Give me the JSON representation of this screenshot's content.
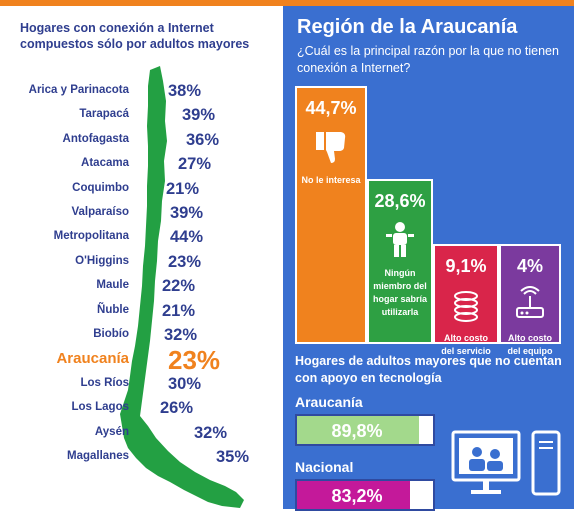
{
  "left": {
    "title": "Hogares con conexión a Internet compuestos sólo por adultos mayores",
    "regions": [
      {
        "name": "Arica y Parinacota",
        "pct": "38%",
        "value": 38
      },
      {
        "name": "Tarapacá",
        "pct": "39%",
        "value": 39
      },
      {
        "name": "Antofagasta",
        "pct": "36%",
        "value": 36
      },
      {
        "name": "Atacama",
        "pct": "27%",
        "value": 27
      },
      {
        "name": "Coquimbo",
        "pct": "21%",
        "value": 21
      },
      {
        "name": "Valparaíso",
        "pct": "39%",
        "value": 39
      },
      {
        "name": "Metropolitana",
        "pct": "44%",
        "value": 44
      },
      {
        "name": "O'Higgins",
        "pct": "23%",
        "value": 23
      },
      {
        "name": "Maule",
        "pct": "22%",
        "value": 22
      },
      {
        "name": "Ñuble",
        "pct": "21%",
        "value": 21
      },
      {
        "name": "Biobío",
        "pct": "32%",
        "value": 32
      },
      {
        "name": "Araucanía",
        "pct": "23%",
        "value": 23,
        "highlight": true
      },
      {
        "name": "Los Ríos",
        "pct": "30%",
        "value": 30
      },
      {
        "name": "Los Lagos",
        "pct": "26%",
        "value": 26
      },
      {
        "name": "Aysén",
        "pct": "32%",
        "value": 32
      },
      {
        "name": "Magallanes",
        "pct": "35%",
        "value": 35
      }
    ]
  },
  "right": {
    "title": "Región de la Araucanía",
    "question": "¿Cuál es la principal razón por la que no tienen conexión a Internet?",
    "support_title": "Hogares de adultos mayores que no cuentan con apoyo en tecnología"
  },
  "chart_data": [
    {
      "type": "bar",
      "title": "Hogares con conexión a Internet compuestos sólo por adultos mayores",
      "categories": [
        "Arica y Parinacota",
        "Tarapacá",
        "Antofagasta",
        "Atacama",
        "Coquimbo",
        "Valparaíso",
        "Metropolitana",
        "O'Higgins",
        "Maule",
        "Ñuble",
        "Biobío",
        "Araucanía",
        "Los Ríos",
        "Los Lagos",
        "Aysén",
        "Magallanes"
      ],
      "values": [
        38,
        39,
        36,
        27,
        21,
        39,
        44,
        23,
        22,
        21,
        32,
        23,
        30,
        26,
        32,
        35
      ]
    },
    {
      "type": "bar",
      "title": "¿Cuál es la principal razón por la que no tienen conexión a Internet?",
      "bars": [
        {
          "label": "No le interesa",
          "value": 44.7,
          "text": "44,7%",
          "color": "#f0821e",
          "icon": "thumbs-down-icon"
        },
        {
          "label": "Ningún miembro del hogar sabría utilizarla",
          "value": 28.6,
          "text": "28,6%",
          "color": "#2ea043",
          "icon": "person-icon"
        },
        {
          "label": "Alto costo del servicio",
          "value": 9.1,
          "text": "9,1%",
          "color": "#d9254a",
          "icon": "coins-icon"
        },
        {
          "label": "Alto costo del equipo",
          "value": 4,
          "text": "4%",
          "color": "#7b3a9e",
          "icon": "router-icon"
        }
      ]
    },
    {
      "type": "bar",
      "title": "Hogares de adultos mayores que no cuentan con apoyo en tecnología",
      "bars": [
        {
          "label": "Araucanía",
          "value": 89.8,
          "text": "89,8%",
          "color": "#a3d98c"
        },
        {
          "label": "Nacional",
          "value": 83.2,
          "text": "83,2%",
          "color": "#c4199a"
        }
      ]
    }
  ]
}
